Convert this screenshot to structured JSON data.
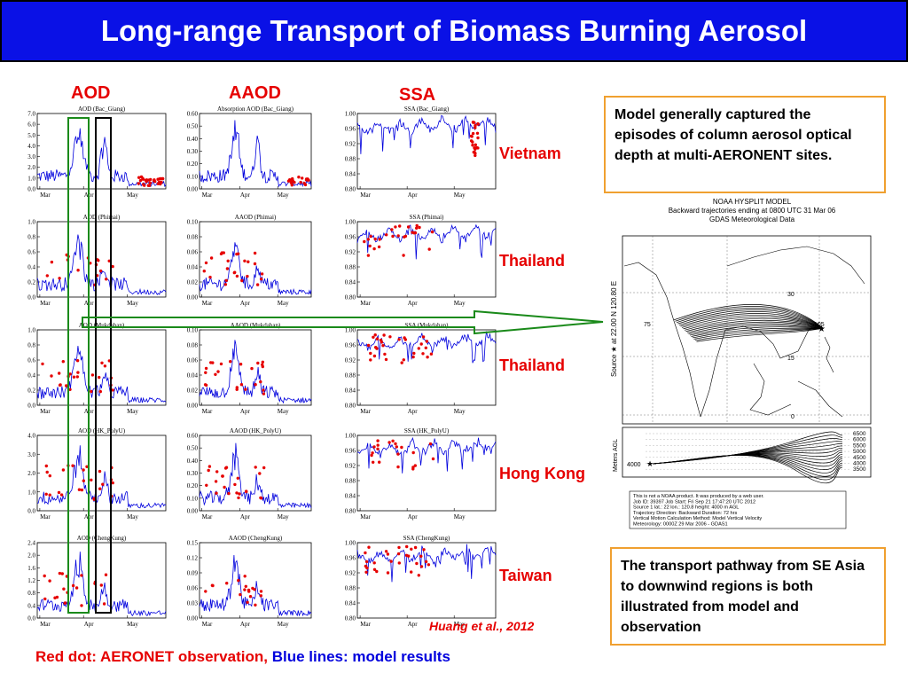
{
  "title": "Long-range Transport of Biomass Burning Aerosol",
  "column_headers": [
    "AOD",
    "AAOD",
    "SSA"
  ],
  "sites": [
    "Vietnam",
    "Thailand",
    "Thailand",
    "Hong Kong",
    "Taiwan"
  ],
  "callouts": {
    "top": "Model generally captured the episodes of column aerosol optical depth at multi-AERONENT sites.",
    "bottom": "The transport pathway from SE Asia to downwind regions is both illustrated from model and observation"
  },
  "citation": "Huang et al., 2012",
  "legend": {
    "red_part": "Red dot: AERONET observation,",
    "blue_part": "Blue lines: model results"
  },
  "colors": {
    "title_bg": "#0a11e6",
    "accent_red": "#e60000",
    "model_blue": "#0000dd",
    "callout_border": "#f0a030",
    "box_green": "#1a8a1a"
  },
  "chart_data": [
    {
      "type": "line",
      "title": "AOD (Bac_Giang)",
      "ylim": [
        0,
        7
      ],
      "yticks": [
        "0.0",
        "1.0",
        "2.0",
        "3.0",
        "4.0",
        "5.0",
        "6.0",
        "7.0"
      ],
      "xticks": [
        "Mar",
        "Apr",
        "May"
      ]
    },
    {
      "type": "line",
      "title": "Absorption AOD (Bac_Giang)",
      "ylim": [
        0,
        0.6
      ],
      "yticks": [
        "0.00",
        "0.10",
        "0.20",
        "0.30",
        "0.40",
        "0.50",
        "0.60"
      ],
      "xticks": [
        "Mar",
        "Apr",
        "May"
      ]
    },
    {
      "type": "line",
      "title": "SSA (Bac_Giang)",
      "ylim": [
        0.8,
        1
      ],
      "yticks": [
        "0.80",
        "0.84",
        "0.88",
        "0.92",
        "0.96",
        "1.00"
      ],
      "xticks": [
        "Mar",
        "Apr",
        "May"
      ]
    },
    {
      "type": "line",
      "title": "AOD (Phimai)",
      "ylim": [
        0,
        1
      ],
      "yticks": [
        "0.0",
        "0.2",
        "0.4",
        "0.6",
        "0.8",
        "1.0"
      ],
      "xticks": [
        "Mar",
        "Apr",
        "May"
      ]
    },
    {
      "type": "line",
      "title": "AAOD (Phimai)",
      "ylim": [
        0,
        0.1
      ],
      "yticks": [
        "0.00",
        "0.02",
        "0.04",
        "0.06",
        "0.08",
        "0.10"
      ],
      "xticks": [
        "Mar",
        "Apr",
        "May"
      ]
    },
    {
      "type": "line",
      "title": "SSA (Phimai)",
      "ylim": [
        0.8,
        1
      ],
      "yticks": [
        "0.80",
        "0.84",
        "0.88",
        "0.92",
        "0.96",
        "1.00"
      ],
      "xticks": [
        "Mar",
        "Apr",
        "May"
      ]
    },
    {
      "type": "line",
      "title": "AOD (Mukdahan)",
      "ylim": [
        0,
        1
      ],
      "yticks": [
        "0.0",
        "0.2",
        "0.4",
        "0.6",
        "0.8",
        "1.0"
      ],
      "xticks": [
        "Mar",
        "Apr",
        "May"
      ]
    },
    {
      "type": "line",
      "title": "AAOD (Mukdahan)",
      "ylim": [
        0,
        0.1
      ],
      "yticks": [
        "0.00",
        "0.02",
        "0.04",
        "0.06",
        "0.08",
        "0.10"
      ],
      "xticks": [
        "Mar",
        "Apr",
        "May"
      ]
    },
    {
      "type": "line",
      "title": "SSA (Mukdahan)",
      "ylim": [
        0.8,
        1
      ],
      "yticks": [
        "0.80",
        "0.84",
        "0.88",
        "0.92",
        "0.96",
        "1.00"
      ],
      "xticks": [
        "Mar",
        "Apr",
        "May"
      ]
    },
    {
      "type": "line",
      "title": "AOD (HK_PolyU)",
      "ylim": [
        0,
        4
      ],
      "yticks": [
        "0.0",
        "1.0",
        "2.0",
        "3.0",
        "4.0"
      ],
      "xticks": [
        "Mar",
        "Apr",
        "May"
      ]
    },
    {
      "type": "line",
      "title": "AAOD (HK_PolyU)",
      "ylim": [
        0,
        0.6
      ],
      "yticks": [
        "0.00",
        "0.10",
        "0.20",
        "0.30",
        "0.40",
        "0.50",
        "0.60"
      ],
      "xticks": [
        "Mar",
        "Apr",
        "May"
      ]
    },
    {
      "type": "line",
      "title": "SSA (HK_PolyU)",
      "ylim": [
        0.8,
        1
      ],
      "yticks": [
        "0.80",
        "0.84",
        "0.88",
        "0.92",
        "0.96",
        "1.00"
      ],
      "xticks": [
        "Mar",
        "Apr",
        "May"
      ]
    },
    {
      "type": "line",
      "title": "AOD (ChengKung)",
      "ylim": [
        0,
        2.4
      ],
      "yticks": [
        "0.0",
        "0.4",
        "0.8",
        "1.2",
        "1.6",
        "2.0",
        "2.4"
      ],
      "xticks": [
        "Mar",
        "Apr",
        "May"
      ]
    },
    {
      "type": "line",
      "title": "AAOD (ChengKung)",
      "ylim": [
        0,
        0.15
      ],
      "yticks": [
        "0.00",
        "0.03",
        "0.06",
        "0.09",
        "0.12",
        "0.15"
      ],
      "xticks": [
        "Mar",
        "Apr",
        "May"
      ]
    },
    {
      "type": "line",
      "title": "SSA (ChengKung)",
      "ylim": [
        0.8,
        1
      ],
      "yticks": [
        "0.80",
        "0.84",
        "0.88",
        "0.92",
        "0.96",
        "1.00"
      ],
      "xticks": [
        "Mar",
        "Apr",
        "May"
      ]
    }
  ],
  "hysplit": {
    "header": [
      "NOAA HYSPLIT MODEL",
      "Backward trajectories ending at 0800 UTC 31 Mar 06",
      "GDAS Meteorological Data"
    ],
    "source_label": "Source ★ at 22.00 N 120.80 E",
    "lat_labels": [
      "30",
      "15",
      "0"
    ],
    "lon_labels": [
      "75",
      "105"
    ],
    "height_axis_label": "Meters AGL",
    "height_ticks": [
      "6500",
      "6000",
      "5500",
      "5000",
      "4500",
      "4000",
      "3500"
    ],
    "start_height": "4000",
    "footer": [
      "This is not a NOAA product. It was produced by a web user.",
      "Job ID: 39397                    Job Start: Fri Sep 21 17:47:20 UTC 2012",
      "Source 1      lat.: 22    lon.: 120.8    height: 4000 m AGL",
      "Trajectory Direction: Backward      Duration: 72 hrs",
      "Vertical Motion Calculation Method:        Model Vertical Velocity",
      "Meteorology: 0000Z 29 Mar 2006 - GDAS1"
    ]
  }
}
